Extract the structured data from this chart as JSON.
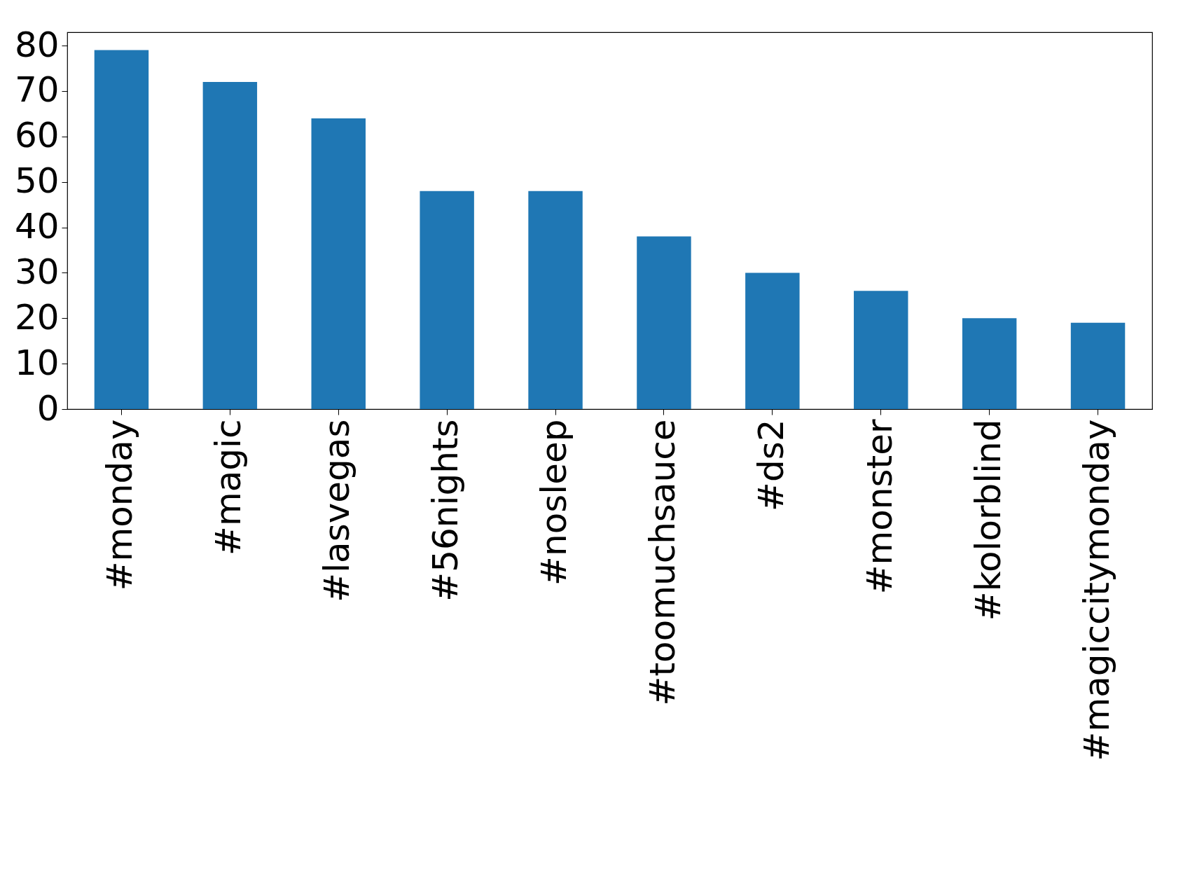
{
  "chart_data": {
    "type": "bar",
    "categories": [
      "#monday",
      "#magic",
      "#lasvegas",
      "#56nights",
      "#nosleep",
      "#toomuchsauce",
      "#ds2",
      "#monster",
      "#kolorblind",
      "#magiccitymonday"
    ],
    "values": [
      79,
      72,
      64,
      48,
      48,
      38,
      30,
      26,
      20,
      19
    ],
    "color": "#1f77b4",
    "ylim": [
      0,
      82.95
    ],
    "yticks": [
      0,
      10,
      20,
      30,
      40,
      50,
      60,
      70,
      80
    ],
    "grid": false
  }
}
